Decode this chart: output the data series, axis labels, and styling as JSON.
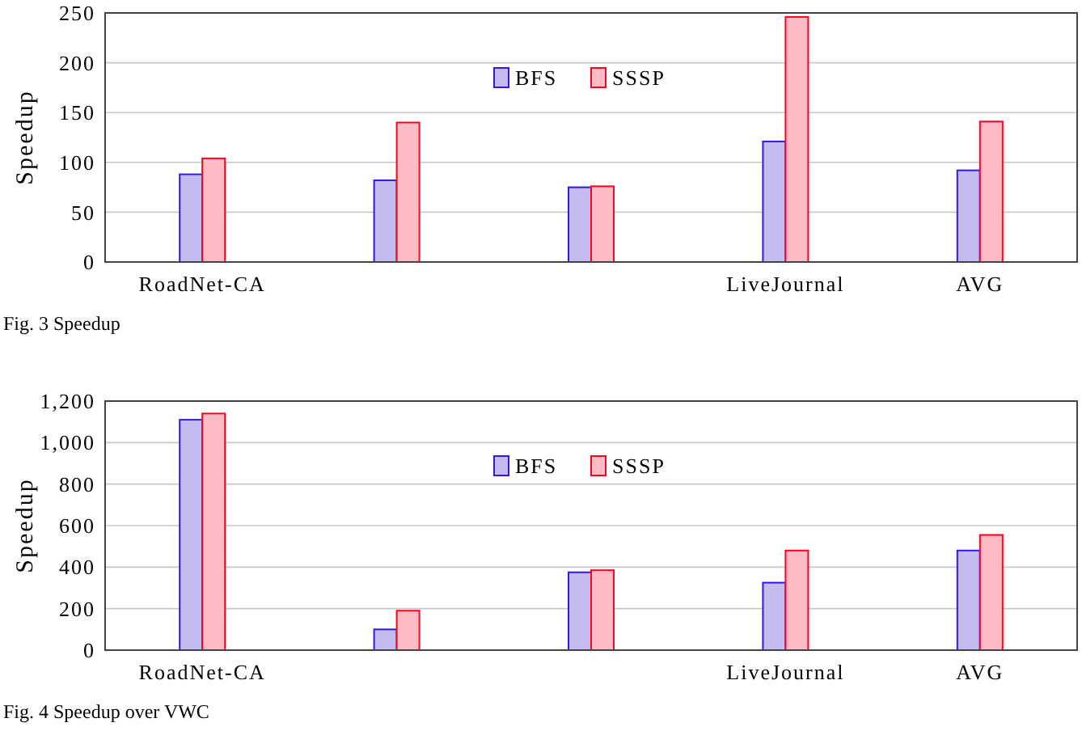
{
  "chart_data": [
    {
      "type": "bar",
      "categories": [
        "RoadNet-CA",
        null,
        null,
        "LiveJournal",
        "AVG"
      ],
      "ylabel": "Speedup",
      "ylim": [
        0,
        250
      ],
      "yticks": [
        0,
        50,
        100,
        150,
        200,
        250
      ],
      "grid": "y",
      "legend": "top",
      "series": [
        {
          "name": "BFS",
          "color": "#c4bcf0",
          "values": [
            88,
            82,
            75,
            121,
            92
          ]
        },
        {
          "name": "SSSP",
          "color": "#ffbcc4",
          "values": [
            104,
            140,
            76,
            246,
            141
          ]
        }
      ],
      "annotations": [
        "Fig. 3 Speedup"
      ]
    },
    {
      "type": "bar",
      "categories": [
        "RoadNet-CA",
        null,
        null,
        "LiveJournal",
        "AVG"
      ],
      "ylabel": "Speedup",
      "ylim": [
        0,
        1200
      ],
      "yticks": [
        0,
        200,
        400,
        600,
        800,
        {
          "value": 1000,
          "label": "1,000"
        },
        {
          "value": 1200,
          "label": "1,200"
        }
      ],
      "grid": "y",
      "legend": "top",
      "series": [
        {
          "name": "BFS",
          "color": "#c4bcf0",
          "values": [
            1110,
            100,
            375,
            325,
            480
          ]
        },
        {
          "name": "SSSP",
          "color": "#ffbcc4",
          "values": [
            1140,
            190,
            385,
            480,
            555
          ]
        }
      ],
      "annotations": [
        "Fig. 4 Speedup over VWC"
      ]
    }
  ]
}
